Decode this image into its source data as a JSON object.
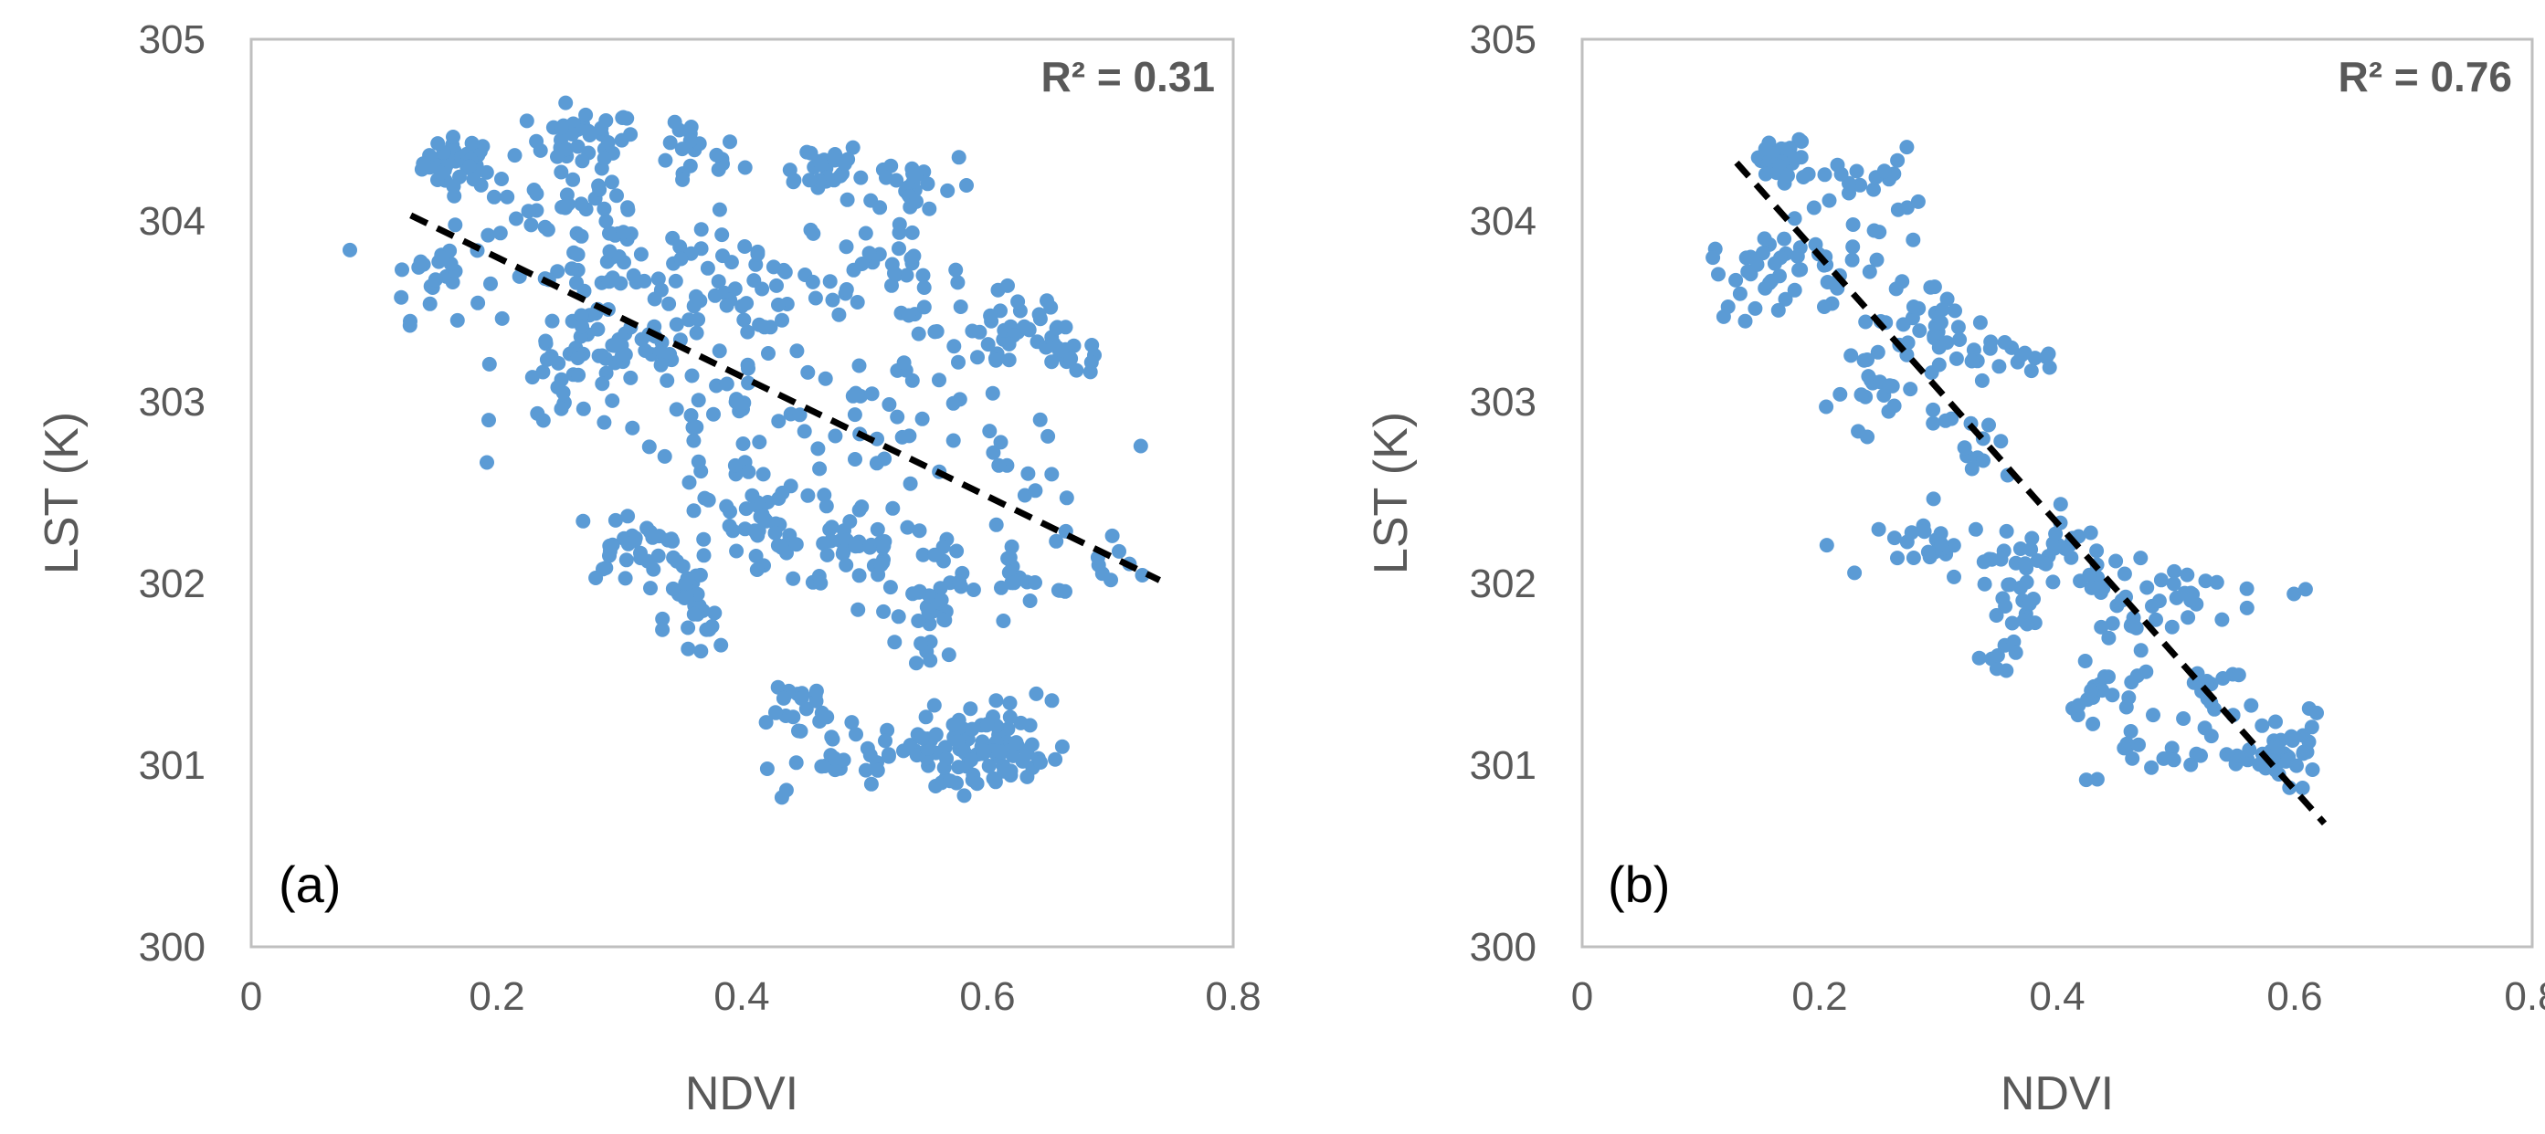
{
  "figure": {
    "colors": {
      "point": "#5b9bd5",
      "trendline": "#000000",
      "frame": "#bfbfbf",
      "text": "#595959"
    }
  },
  "chart_data": [
    {
      "type": "scatter",
      "panel_label": "(a)",
      "r2_label": "R² = 0.31",
      "xlabel": "NDVI",
      "ylabel": "LST (K)",
      "xlim": [
        0,
        0.8
      ],
      "ylim": [
        300,
        305
      ],
      "x_ticks": [
        "0",
        "0.2",
        "0.4",
        "0.6",
        "0.8"
      ],
      "y_ticks": [
        "300",
        "301",
        "302",
        "303",
        "304",
        "305"
      ],
      "trendline": {
        "style": "dashed",
        "x": [
          0.13,
          0.74
        ],
        "y": [
          304.03,
          302.02
        ]
      },
      "clusters": [
        {
          "cx": 0.17,
          "cy": 304.32,
          "sx": 0.015,
          "sy": 0.07,
          "n": 40
        },
        {
          "cx": 0.27,
          "cy": 304.45,
          "sx": 0.022,
          "sy": 0.08,
          "n": 35
        },
        {
          "cx": 0.36,
          "cy": 304.35,
          "sx": 0.02,
          "sy": 0.1,
          "n": 20
        },
        {
          "cx": 0.25,
          "cy": 304.1,
          "sx": 0.03,
          "sy": 0.12,
          "n": 30
        },
        {
          "cx": 0.46,
          "cy": 304.3,
          "sx": 0.02,
          "sy": 0.07,
          "n": 25
        },
        {
          "cx": 0.54,
          "cy": 304.2,
          "sx": 0.025,
          "sy": 0.1,
          "n": 25
        },
        {
          "cx": 0.15,
          "cy": 303.7,
          "sx": 0.02,
          "sy": 0.12,
          "n": 25
        },
        {
          "cx": 0.3,
          "cy": 303.8,
          "sx": 0.04,
          "sy": 0.15,
          "n": 50
        },
        {
          "cx": 0.42,
          "cy": 303.6,
          "sx": 0.04,
          "sy": 0.15,
          "n": 45
        },
        {
          "cx": 0.52,
          "cy": 303.7,
          "sx": 0.03,
          "sy": 0.12,
          "n": 30
        },
        {
          "cx": 0.62,
          "cy": 303.4,
          "sx": 0.03,
          "sy": 0.15,
          "n": 40
        },
        {
          "cx": 0.67,
          "cy": 303.25,
          "sx": 0.015,
          "sy": 0.05,
          "n": 15
        },
        {
          "cx": 0.3,
          "cy": 303.3,
          "sx": 0.04,
          "sy": 0.1,
          "n": 45
        },
        {
          "cx": 0.26,
          "cy": 303.05,
          "sx": 0.03,
          "sy": 0.15,
          "n": 25
        },
        {
          "cx": 0.4,
          "cy": 302.9,
          "sx": 0.04,
          "sy": 0.2,
          "n": 40
        },
        {
          "cx": 0.52,
          "cy": 302.9,
          "sx": 0.04,
          "sy": 0.2,
          "n": 30
        },
        {
          "cx": 0.63,
          "cy": 302.6,
          "sx": 0.03,
          "sy": 0.2,
          "n": 20
        },
        {
          "cx": 0.31,
          "cy": 302.2,
          "sx": 0.025,
          "sy": 0.1,
          "n": 35
        },
        {
          "cx": 0.36,
          "cy": 301.8,
          "sx": 0.012,
          "sy": 0.15,
          "n": 25
        },
        {
          "cx": 0.42,
          "cy": 302.3,
          "sx": 0.03,
          "sy": 0.15,
          "n": 40
        },
        {
          "cx": 0.5,
          "cy": 302.2,
          "sx": 0.03,
          "sy": 0.12,
          "n": 35
        },
        {
          "cx": 0.55,
          "cy": 301.8,
          "sx": 0.012,
          "sy": 0.2,
          "n": 25
        },
        {
          "cx": 0.62,
          "cy": 302.1,
          "sx": 0.04,
          "sy": 0.1,
          "n": 30
        },
        {
          "cx": 0.44,
          "cy": 301.3,
          "sx": 0.02,
          "sy": 0.1,
          "n": 20
        },
        {
          "cx": 0.47,
          "cy": 301.05,
          "sx": 0.03,
          "sy": 0.08,
          "n": 20
        },
        {
          "cx": 0.53,
          "cy": 301.05,
          "sx": 0.03,
          "sy": 0.08,
          "n": 15
        },
        {
          "cx": 0.59,
          "cy": 301.1,
          "sx": 0.02,
          "sy": 0.12,
          "n": 70
        },
        {
          "cx": 0.64,
          "cy": 301.05,
          "sx": 0.015,
          "sy": 0.08,
          "n": 10
        },
        {
          "cx": 0.43,
          "cy": 300.9,
          "sx": 0.01,
          "sy": 0.05,
          "n": 3
        },
        {
          "cx": 0.58,
          "cy": 300.88,
          "sx": 0.01,
          "sy": 0.04,
          "n": 3
        },
        {
          "cx": 0.65,
          "cy": 301.35,
          "sx": 0.005,
          "sy": 0.03,
          "n": 2
        },
        {
          "cx": 0.7,
          "cy": 302.05,
          "sx": 0.015,
          "sy": 0.05,
          "n": 4
        }
      ]
    },
    {
      "type": "scatter",
      "panel_label": "(b)",
      "r2_label": "R² = 0.76",
      "xlabel": "NDVI",
      "ylabel": "LST (K)",
      "xlim": [
        0,
        0.8
      ],
      "ylim": [
        300,
        305
      ],
      "x_ticks": [
        "0",
        "0.2",
        "0.4",
        "0.6",
        "0.8"
      ],
      "y_ticks": [
        "300",
        "301",
        "302",
        "303",
        "304",
        "305"
      ],
      "trendline": {
        "style": "dashed",
        "x": [
          0.13,
          0.625
        ],
        "y": [
          304.32,
          300.68
        ]
      },
      "clusters": [
        {
          "cx": 0.17,
          "cy": 304.32,
          "sx": 0.015,
          "sy": 0.07,
          "n": 35
        },
        {
          "cx": 0.24,
          "cy": 304.2,
          "sx": 0.02,
          "sy": 0.1,
          "n": 20
        },
        {
          "cx": 0.15,
          "cy": 303.7,
          "sx": 0.02,
          "sy": 0.12,
          "n": 25
        },
        {
          "cx": 0.2,
          "cy": 303.75,
          "sx": 0.03,
          "sy": 0.12,
          "n": 25
        },
        {
          "cx": 0.29,
          "cy": 303.45,
          "sx": 0.03,
          "sy": 0.12,
          "n": 30
        },
        {
          "cx": 0.35,
          "cy": 303.25,
          "sx": 0.025,
          "sy": 0.05,
          "n": 20
        },
        {
          "cx": 0.25,
          "cy": 303.05,
          "sx": 0.02,
          "sy": 0.15,
          "n": 20
        },
        {
          "cx": 0.33,
          "cy": 302.75,
          "sx": 0.025,
          "sy": 0.1,
          "n": 15
        },
        {
          "cx": 0.3,
          "cy": 302.2,
          "sx": 0.025,
          "sy": 0.08,
          "n": 25
        },
        {
          "cx": 0.36,
          "cy": 301.85,
          "sx": 0.012,
          "sy": 0.15,
          "n": 25
        },
        {
          "cx": 0.41,
          "cy": 302.15,
          "sx": 0.03,
          "sy": 0.12,
          "n": 35
        },
        {
          "cx": 0.47,
          "cy": 301.85,
          "sx": 0.025,
          "sy": 0.15,
          "n": 30
        },
        {
          "cx": 0.52,
          "cy": 301.95,
          "sx": 0.02,
          "sy": 0.06,
          "n": 8
        },
        {
          "cx": 0.44,
          "cy": 301.35,
          "sx": 0.015,
          "sy": 0.1,
          "n": 20
        },
        {
          "cx": 0.49,
          "cy": 301.05,
          "sx": 0.03,
          "sy": 0.06,
          "n": 15
        },
        {
          "cx": 0.53,
          "cy": 301.4,
          "sx": 0.02,
          "sy": 0.1,
          "n": 15
        },
        {
          "cx": 0.59,
          "cy": 301.05,
          "sx": 0.015,
          "sy": 0.07,
          "n": 45
        },
        {
          "cx": 0.6,
          "cy": 301.95,
          "sx": 0.01,
          "sy": 0.02,
          "n": 2
        },
        {
          "cx": 0.62,
          "cy": 301.3,
          "sx": 0.005,
          "sy": 0.03,
          "n": 2
        },
        {
          "cx": 0.43,
          "cy": 300.9,
          "sx": 0.005,
          "sy": 0.03,
          "n": 2
        }
      ]
    }
  ]
}
